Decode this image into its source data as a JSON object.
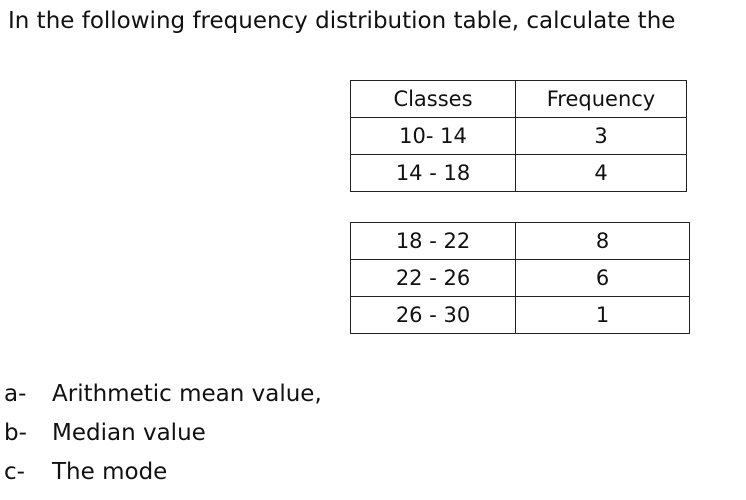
{
  "prompt": "In the following frequency distribution table, calculate the",
  "table": {
    "headers": [
      "Classes",
      "Frequency"
    ],
    "part1": [
      {
        "classes": "10- 14",
        "frequency": "3"
      },
      {
        "classes": "14 - 18",
        "frequency": "4"
      }
    ],
    "part2": [
      {
        "classes": "18 - 22",
        "frequency": "8"
      },
      {
        "classes": "22 - 26",
        "frequency": "6"
      },
      {
        "classes": "26 - 30",
        "frequency": "1"
      }
    ]
  },
  "tasks": [
    {
      "mark": "a-",
      "text": "Arithmetic mean value,"
    },
    {
      "mark": "b-",
      "text": "Median value"
    },
    {
      "mark": "c-",
      "text": "The mode"
    }
  ]
}
